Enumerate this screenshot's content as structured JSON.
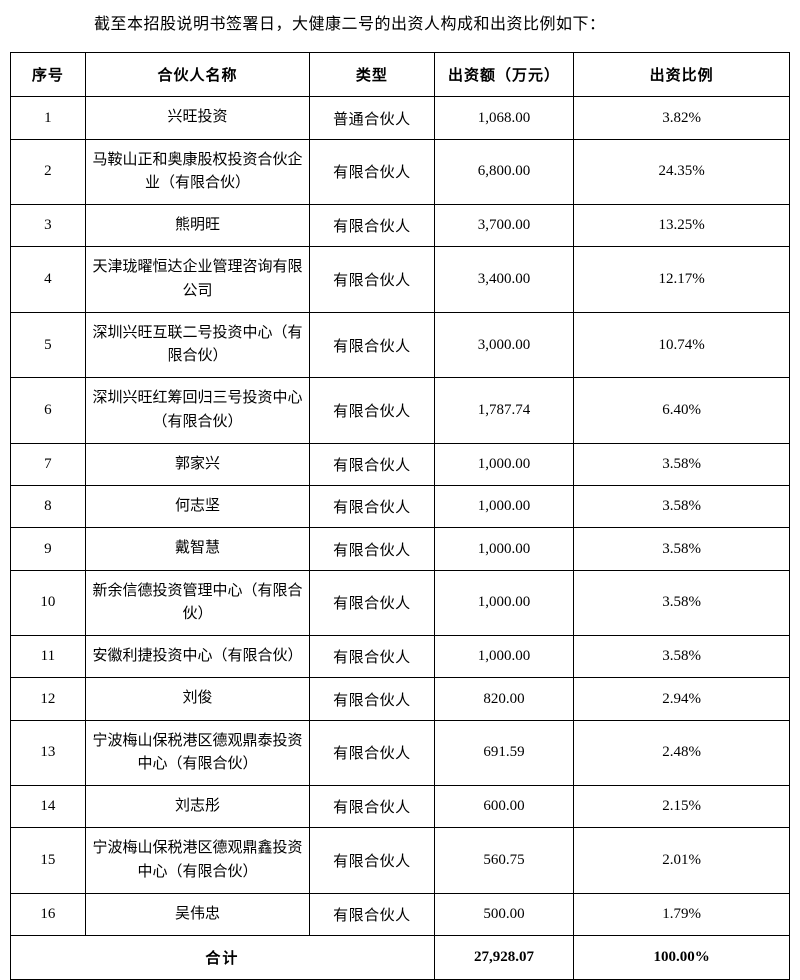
{
  "intro": "截至本招股说明书签署日，大健康二号的出资人构成和出资比例如下：",
  "table": {
    "headers": [
      "序号",
      "合伙人名称",
      "类型",
      "出资额（万元）",
      "出资比例"
    ],
    "rows": [
      {
        "no": "1",
        "name": "兴旺投资",
        "type": "普通合伙人",
        "amount": "1,068.00",
        "ratio": "3.82%"
      },
      {
        "no": "2",
        "name": "马鞍山正和奥康股权投资合伙企业（有限合伙）",
        "type": "有限合伙人",
        "amount": "6,800.00",
        "ratio": "24.35%"
      },
      {
        "no": "3",
        "name": "熊明旺",
        "type": "有限合伙人",
        "amount": "3,700.00",
        "ratio": "13.25%"
      },
      {
        "no": "4",
        "name": "天津珑曜恒达企业管理咨询有限公司",
        "type": "有限合伙人",
        "amount": "3,400.00",
        "ratio": "12.17%"
      },
      {
        "no": "5",
        "name": "深圳兴旺互联二号投资中心（有限合伙）",
        "type": "有限合伙人",
        "amount": "3,000.00",
        "ratio": "10.74%"
      },
      {
        "no": "6",
        "name": "深圳兴旺红筹回归三号投资中心（有限合伙）",
        "type": "有限合伙人",
        "amount": "1,787.74",
        "ratio": "6.40%"
      },
      {
        "no": "7",
        "name": "郭家兴",
        "type": "有限合伙人",
        "amount": "1,000.00",
        "ratio": "3.58%"
      },
      {
        "no": "8",
        "name": "何志坚",
        "type": "有限合伙人",
        "amount": "1,000.00",
        "ratio": "3.58%"
      },
      {
        "no": "9",
        "name": "戴智慧",
        "type": "有限合伙人",
        "amount": "1,000.00",
        "ratio": "3.58%"
      },
      {
        "no": "10",
        "name": "新余信德投资管理中心（有限合伙）",
        "type": "有限合伙人",
        "amount": "1,000.00",
        "ratio": "3.58%"
      },
      {
        "no": "11",
        "name": "安徽利捷投资中心（有限合伙）",
        "type": "有限合伙人",
        "amount": "1,000.00",
        "ratio": "3.58%"
      },
      {
        "no": "12",
        "name": "刘俊",
        "type": "有限合伙人",
        "amount": "820.00",
        "ratio": "2.94%"
      },
      {
        "no": "13",
        "name": "宁波梅山保税港区德观鼎泰投资中心（有限合伙）",
        "type": "有限合伙人",
        "amount": "691.59",
        "ratio": "2.48%"
      },
      {
        "no": "14",
        "name": "刘志彤",
        "type": "有限合伙人",
        "amount": "600.00",
        "ratio": "2.15%"
      },
      {
        "no": "15",
        "name": "宁波梅山保税港区德观鼎鑫投资中心（有限合伙）",
        "type": "有限合伙人",
        "amount": "560.75",
        "ratio": "2.01%"
      },
      {
        "no": "16",
        "name": "吴伟忠",
        "type": "有限合伙人",
        "amount": "500.00",
        "ratio": "1.79%"
      }
    ],
    "total": {
      "label": "合计",
      "amount": "27,928.07",
      "ratio": "100.00%"
    }
  }
}
